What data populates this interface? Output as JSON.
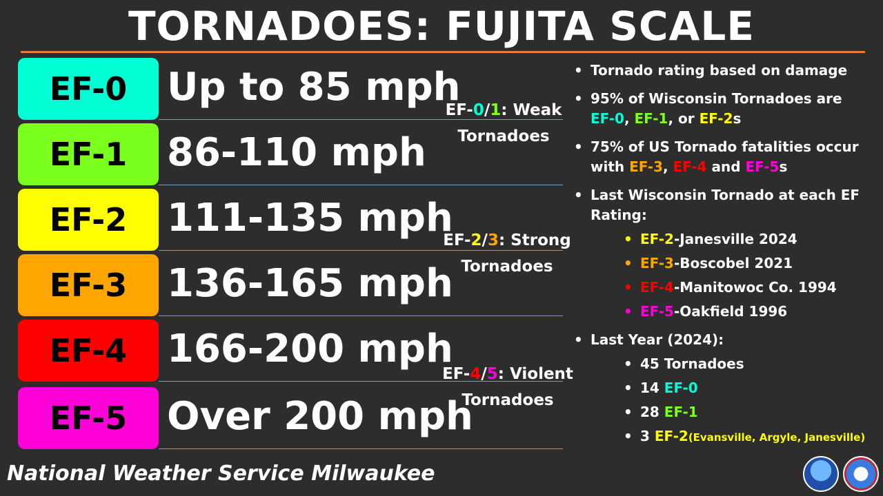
{
  "title": "TORNADOES: FUJITA SCALE",
  "colors": {
    "ef0": "#00ffd5",
    "ef1": "#7bff1c",
    "ef2": "#ffff00",
    "ef3": "#ffa500",
    "ef4": "#ff0000",
    "ef5": "#ff00d8",
    "rule": "#e87a3a"
  },
  "scale": [
    {
      "rating": "EF-0",
      "speed": "Up to 85 mph"
    },
    {
      "rating": "EF-1",
      "speed": "86-110 mph"
    },
    {
      "rating": "EF-2",
      "speed": "111-135 mph"
    },
    {
      "rating": "EF-3",
      "speed": "136-165 mph"
    },
    {
      "rating": "EF-4",
      "speed": "166-200 mph"
    },
    {
      "rating": "EF-5",
      "speed": "Over 200 mph"
    }
  ],
  "groups": {
    "weak": {
      "a": "EF-",
      "b": "0",
      "slash": "/",
      "c": "1",
      "rest": ": Weak",
      "line2": "Tornadoes"
    },
    "strong": {
      "a": "EF-",
      "b": "2",
      "slash": "/",
      "c": "3",
      "rest": ": Strong",
      "line2": "Tornadoes"
    },
    "violent": {
      "a": "EF-",
      "b": "4",
      "slash": "/",
      "c": "5",
      "rest": ": Violent",
      "line2": "Tornadoes"
    }
  },
  "bullets": {
    "b1": "Tornado rating based on damage",
    "b2_text": "95% of Wisconsin Tornadoes are",
    "b2_ef0": "EF-0",
    "b2_comma1": ", ",
    "b2_ef1": "EF-1",
    "b2_or": ", or ",
    "b2_ef2": "EF-2",
    "b2_s": "s",
    "b3_text": "75% of US Tornado fatalities occur with ",
    "b3_ef3": "EF-3",
    "b3_comma": ", ",
    "b3_ef4": "EF-4",
    "b3_and": " and ",
    "b3_ef5": "EF-5",
    "b3_s": "s",
    "b4": "Last Wisconsin Tornado at each EF Rating:",
    "last": [
      {
        "ef": "EF-2",
        "place": "-Janesville 2024"
      },
      {
        "ef": "EF-3",
        "place": "-Boscobel 2021"
      },
      {
        "ef": "EF-4",
        "place": "-Manitowoc Co. 1994"
      },
      {
        "ef": "EF-5",
        "place": "-Oakfield 1996"
      }
    ],
    "b5": "Last Year (2024):",
    "year_total": "45 Tornadoes",
    "year_ef0_count": "14 ",
    "year_ef0": "EF-0",
    "year_ef1_count": "28 ",
    "year_ef1": "EF-1",
    "year_ef2_count": "3 ",
    "year_ef2": "EF-2",
    "year_ef2_places": "(Evansville,  Argyle,  Janesville)"
  },
  "footer": "National Weather Service Milwaukee"
}
